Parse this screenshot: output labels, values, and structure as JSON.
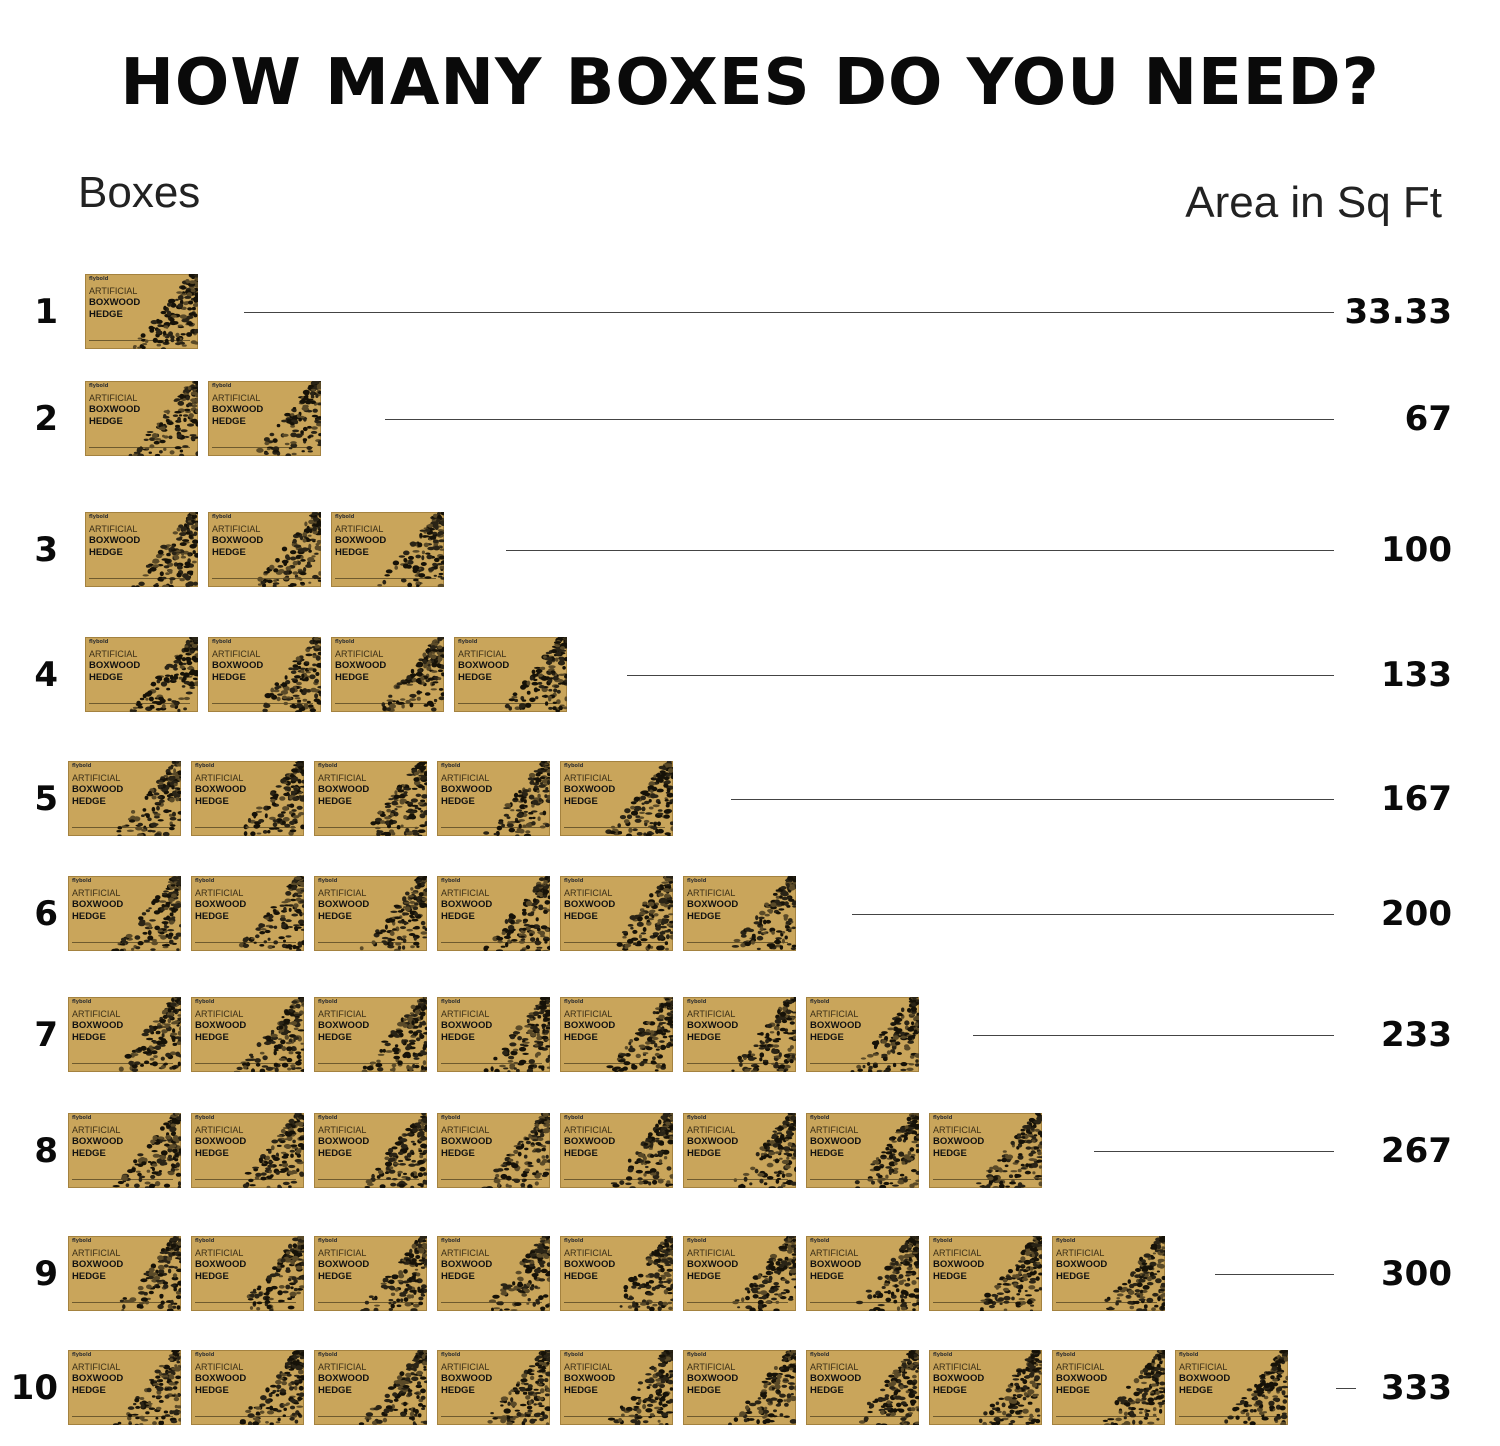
{
  "chart_data": {
    "type": "table",
    "title": "HOW MANY BOXES DO YOU NEED?",
    "xlabel": "Boxes",
    "ylabel": "Area in Sq Ft",
    "categories": [
      "1",
      "2",
      "3",
      "4",
      "5",
      "6",
      "7",
      "8",
      "9",
      "10"
    ],
    "values": [
      "33.33",
      "67",
      "100",
      "133",
      "167",
      "200",
      "233",
      "267",
      "300",
      "333"
    ],
    "box_counts": [
      1,
      2,
      3,
      4,
      5,
      6,
      7,
      8,
      9,
      10
    ]
  },
  "box_label": {
    "line1": "ARTIFICIAL",
    "line2": "BOXWOOD",
    "line3": "HEDGE",
    "brand": "flybold"
  },
  "colors": {
    "box_fill": "#c9a55b",
    "leaf": "#2a2416",
    "line": "#444444"
  }
}
